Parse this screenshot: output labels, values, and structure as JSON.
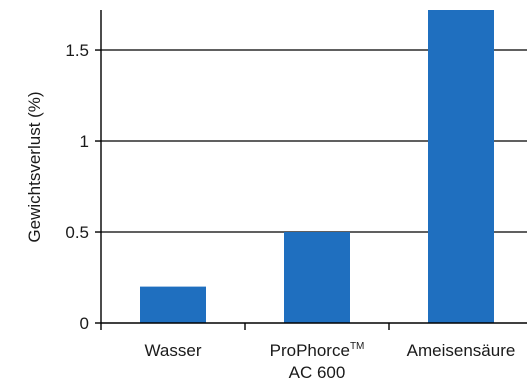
{
  "chart_data": {
    "type": "bar",
    "categories": [
      "Wasser",
      "ProPhorce™ AC 600",
      "Ameisensäure"
    ],
    "category_label_lines": [
      [
        {
          "text": "Wasser",
          "sup": ""
        }
      ],
      [
        {
          "text": "ProPhorce",
          "sup": "TM"
        },
        {
          "text": "AC 600",
          "sup": ""
        }
      ],
      [
        {
          "text": "Ameisensäure",
          "sup": ""
        }
      ]
    ],
    "values": [
      0.2,
      0.5,
      1.72
    ],
    "ylabel": "Gewichtsverlust (%)",
    "xlabel": "",
    "ylim": [
      0,
      1.72
    ],
    "yticks": [
      0,
      0.5,
      1,
      1.5
    ],
    "ytick_labels": [
      "0",
      "0.5",
      "1",
      "1.5"
    ],
    "grid": "horizontal",
    "bar_color": "#1f6fbf",
    "gridline_color": "#000000"
  }
}
